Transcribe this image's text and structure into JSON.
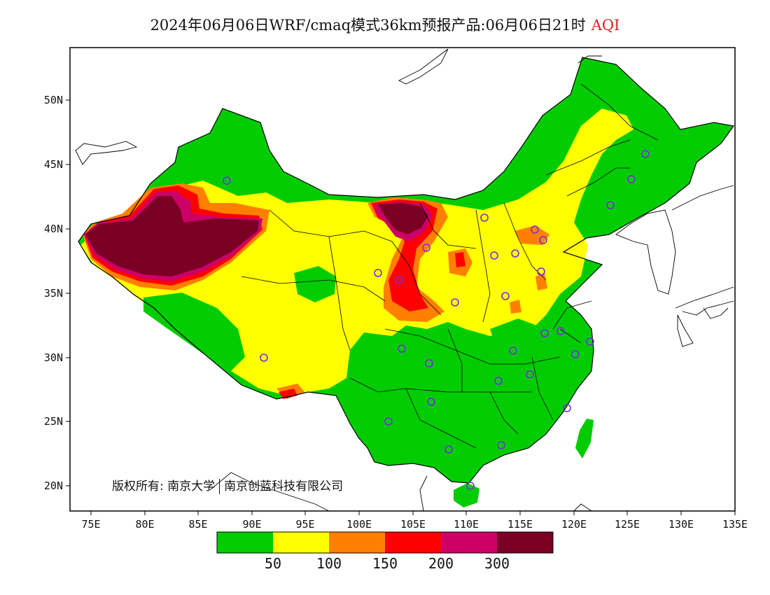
{
  "title": {
    "text": "2024年06月06日WRF/cmaq模式36km预报产品:06月06日21时",
    "variable": "AQI"
  },
  "axes": {
    "lat_ticks": [
      "50N",
      "45N",
      "40N",
      "35N",
      "30N",
      "25N",
      "20N"
    ],
    "lon_ticks": [
      "75E",
      "80E",
      "85E",
      "90E",
      "95E",
      "100E",
      "105E",
      "110E",
      "115E",
      "120E",
      "125E",
      "130E",
      "135E"
    ]
  },
  "legend": {
    "colors": [
      "#00cc00",
      "#ffff00",
      "#ff8000",
      "#ff0000",
      "#cc0066",
      "#7a0024"
    ],
    "labels": [
      "50",
      "100",
      "150",
      "200",
      "300"
    ]
  },
  "copyright": {
    "owner_label": "版权所有:",
    "org1": "南京大学",
    "org2": "南京创蓝科技有限公司"
  },
  "colors": {
    "good": "#00cc00",
    "moderate": "#ffff00",
    "unhealthy_sensitive": "#ff8000",
    "unhealthy": "#ff0000",
    "very_unhealthy": "#cc0066",
    "hazardous": "#7a0024",
    "station_marker": "#7a2be0"
  }
}
